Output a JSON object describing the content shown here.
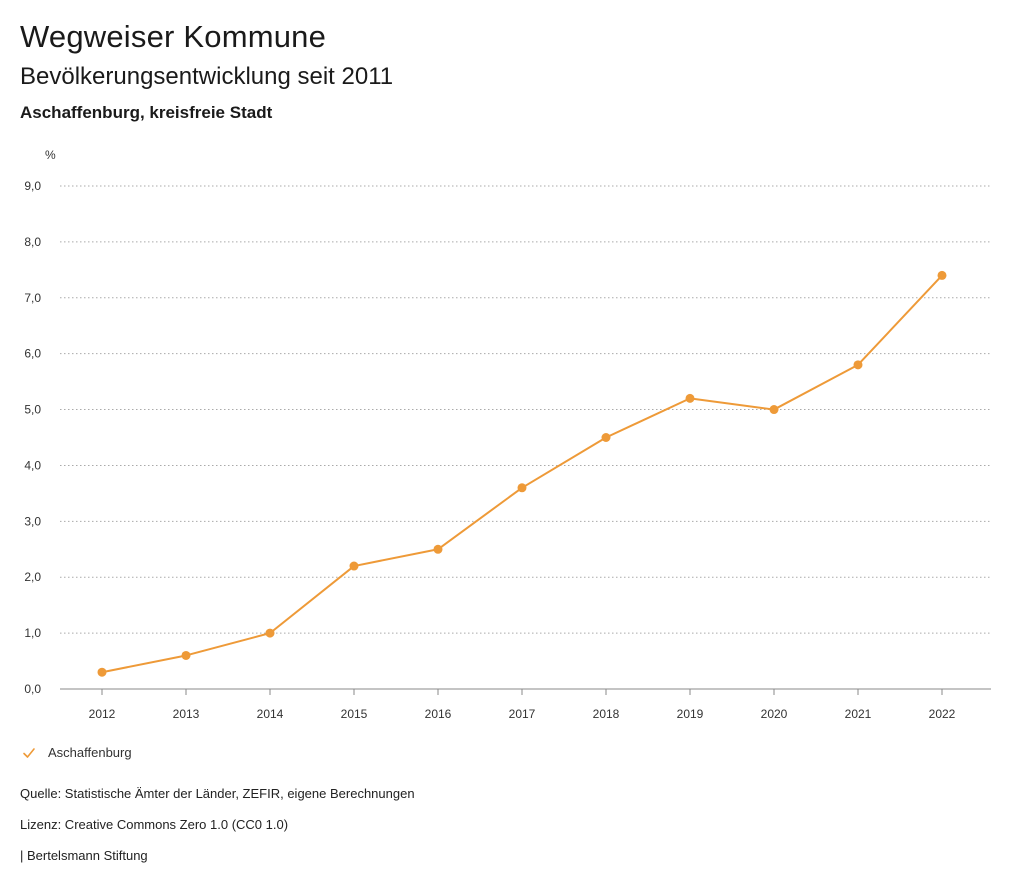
{
  "header": {
    "title": "Wegweiser Kommune",
    "subtitle": "Bevölkerungsentwicklung seit 2011",
    "place": "Aschaffenburg, kreisfreie Stadt"
  },
  "chart_data": {
    "type": "line",
    "title": "Bevölkerungsentwicklung seit 2011",
    "ylabel": "%",
    "xlabel": "",
    "x": [
      "2012",
      "2013",
      "2014",
      "2015",
      "2016",
      "2017",
      "2018",
      "2019",
      "2020",
      "2021",
      "2022"
    ],
    "y_ticks": [
      "0,0",
      "1,0",
      "2,0",
      "3,0",
      "4,0",
      "5,0",
      "6,0",
      "7,0",
      "8,0",
      "9,0"
    ],
    "ylim": [
      0,
      9
    ],
    "grid": true,
    "legend_position": "bottom-left",
    "series": [
      {
        "name": "Aschaffenburg",
        "color": "#ee9a38",
        "values": [
          0.3,
          0.6,
          1.0,
          2.2,
          2.5,
          3.6,
          4.5,
          5.2,
          5.0,
          5.8,
          7.4
        ]
      }
    ]
  },
  "legend": {
    "label": "Aschaffenburg",
    "icon": "check-icon",
    "color": "#ee9a38"
  },
  "footer": {
    "source": "Quelle: Statistische Ämter der Länder, ZEFIR, eigene Berechnungen",
    "license": "Lizenz: Creative Commons Zero 1.0 (CC0 1.0)",
    "publisher": "| Bertelsmann Stiftung"
  }
}
